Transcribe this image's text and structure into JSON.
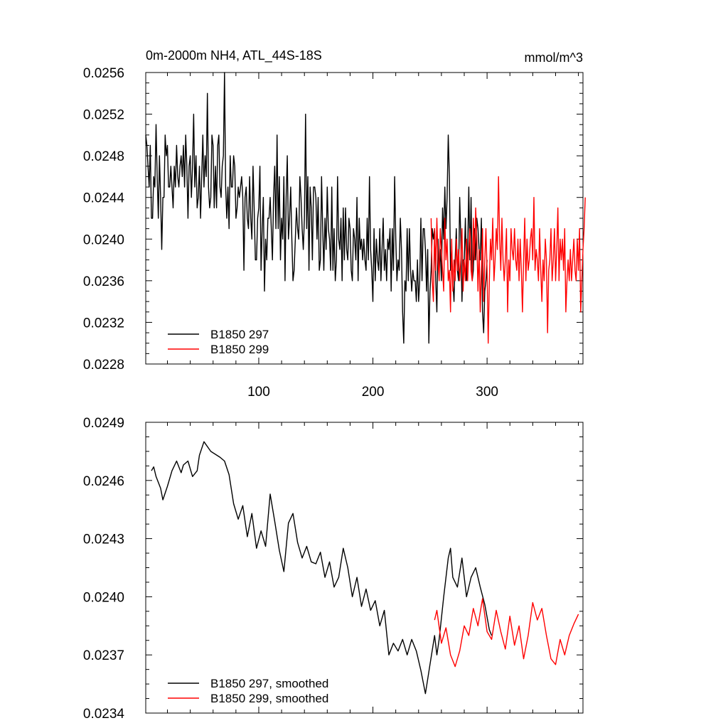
{
  "title_left": "0m-2000m NH4, ATL_44S-18S",
  "title_right": "mmol/m^3",
  "colors": {
    "series1": "#000000",
    "series2": "#ff0000"
  },
  "chart_data": [
    {
      "type": "line",
      "xlim": [
        1,
        384
      ],
      "ylim": [
        0.0228,
        0.0256
      ],
      "xticks": [
        100,
        200,
        300
      ],
      "xtick_labels": [
        "100",
        "200",
        "300"
      ],
      "yticks": [
        0.0228,
        0.0232,
        0.0236,
        0.024,
        0.0244,
        0.0248,
        0.0252,
        0.0256
      ],
      "ytick_labels": [
        "0.0228",
        "0.0232",
        "0.0236",
        "0.0240",
        "0.0244",
        "0.0248",
        "0.0252",
        "0.0256"
      ],
      "legend_position": "bottom-left",
      "series": [
        {
          "name": "B1850 297",
          "color": "#000000",
          "x_start": 1,
          "values": [
            0.025,
            0.0249,
            0.0247,
            0.0245,
            0.0249,
            0.0242,
            0.0242,
            0.0246,
            0.0245,
            0.0251,
            0.0246,
            0.0242,
            0.0248,
            0.0244,
            0.0239,
            0.0244,
            0.0244,
            0.025,
            0.0248,
            0.0249,
            0.0245,
            0.0245,
            0.0247,
            0.0245,
            0.0243,
            0.0247,
            0.0245,
            0.0249,
            0.0246,
            0.0245,
            0.0247,
            0.0248,
            0.0246,
            0.0249,
            0.0245,
            0.025,
            0.0247,
            0.0242,
            0.0247,
            0.0248,
            0.0244,
            0.0247,
            0.0252,
            0.0245,
            0.0248,
            0.0243,
            0.0244,
            0.0247,
            0.0242,
            0.0246,
            0.025,
            0.0245,
            0.0248,
            0.0246,
            0.0254,
            0.0245,
            0.0243,
            0.0244,
            0.025,
            0.0249,
            0.0243,
            0.0247,
            0.0243,
            0.0249,
            0.025,
            0.0245,
            0.0244,
            0.0247,
            0.0248,
            0.0256,
            0.0245,
            0.0242,
            0.0245,
            0.0241,
            0.0248,
            0.0245,
            0.0245,
            0.0248,
            0.0247,
            0.0242,
            0.0243,
            0.0245,
            0.0244,
            0.0245,
            0.0246,
            0.0244,
            0.0237,
            0.0244,
            0.0245,
            0.0242,
            0.0241,
            0.0246,
            0.0242,
            0.024,
            0.0247,
            0.0243,
            0.0238,
            0.0238,
            0.0242,
            0.0243,
            0.0247,
            0.0237,
            0.0241,
            0.0244,
            0.0235,
            0.024,
            0.0238,
            0.0242,
            0.0242,
            0.0244,
            0.0241,
            0.0238,
            0.0244,
            0.0247,
            0.0241,
            0.025,
            0.0241,
            0.0246,
            0.0238,
            0.0242,
            0.024,
            0.0246,
            0.0236,
            0.0244,
            0.0248,
            0.024,
            0.0242,
            0.0245,
            0.024,
            0.0236,
            0.0237,
            0.024,
            0.0243,
            0.0241,
            0.024,
            0.0246,
            0.0244,
            0.0241,
            0.0239,
            0.0242,
            0.0252,
            0.0241,
            0.0246,
            0.0237,
            0.0245,
            0.0243,
            0.0238,
            0.0245,
            0.0245,
            0.0244,
            0.024,
            0.0244,
            0.0237,
            0.0238,
            0.0246,
            0.0241,
            0.0237,
            0.0242,
            0.0239,
            0.0245,
            0.0241,
            0.024,
            0.0237,
            0.0245,
            0.0237,
            0.0241,
            0.0236,
            0.0238,
            0.0246,
            0.024,
            0.0239,
            0.0242,
            0.0236,
            0.0243,
            0.0238,
            0.0243,
            0.0239,
            0.0238,
            0.0242,
            0.0241,
            0.0237,
            0.0236,
            0.0241,
            0.024,
            0.0238,
            0.0244,
            0.0236,
            0.0242,
            0.0239,
            0.024,
            0.0238,
            0.024,
            0.0238,
            0.0237,
            0.0242,
            0.0238,
            0.0246,
            0.0239,
            0.0237,
            0.0234,
            0.0241,
            0.0236,
            0.024,
            0.0238,
            0.0237,
            0.0241,
            0.0236,
            0.0239,
            0.0242,
            0.0237,
            0.0239,
            0.0236,
            0.024,
            0.0239,
            0.0241,
            0.0235,
            0.0241,
            0.0237,
            0.0246,
            0.024,
            0.0236,
            0.0238,
            0.0237,
            0.0242,
            0.0239,
            0.0233,
            0.023,
            0.0236,
            0.0235,
            0.0241,
            0.0236,
            0.0241,
            0.0237,
            0.0235,
            0.0237,
            0.0236,
            0.0236,
            0.0234,
            0.0238,
            0.0234,
            0.0236,
            0.0242,
            0.0236,
            0.0241,
            0.0241,
            0.0239,
            0.0235,
            0.0239,
            0.023,
            0.0235,
            0.0237,
            0.0241,
            0.024,
            0.0241,
            0.0236,
            0.0233,
            0.024,
            0.0237,
            0.0239,
            0.0236,
            0.0243,
            0.024,
            0.0245,
            0.0241,
            0.0244,
            0.025,
            0.0246,
            0.0237,
            0.0239,
            0.0236,
            0.0234,
            0.0238,
            0.0241,
            0.0237,
            0.0236,
            0.0244,
            0.024,
            0.0234,
            0.0238,
            0.0238,
            0.0242,
            0.0236,
            0.0239,
            0.0245,
            0.0238,
            0.0244,
            0.0236,
            0.0237,
            0.0241,
            0.0238,
            0.0242,
            0.0241,
            0.0239,
            0.0238,
            0.0242,
            0.0233,
            0.0231,
            0.0235,
            0.0236,
            0.0238
          ]
        },
        {
          "name": "B1850 299",
          "color": "#ff0000",
          "x_start": 251,
          "values": [
            0.0242,
            0.0236,
            0.0234,
            0.0241,
            0.0237,
            0.0242,
            0.0238,
            0.0236,
            0.0241,
            0.0239,
            0.0237,
            0.0235,
            0.0242,
            0.0238,
            0.024,
            0.0236,
            0.0237,
            0.0233,
            0.024,
            0.0235,
            0.0238,
            0.0236,
            0.024,
            0.0237,
            0.0239,
            0.0236,
            0.0238,
            0.0241,
            0.0235,
            0.0238,
            0.0236,
            0.024,
            0.0236,
            0.0239,
            0.0241,
            0.0237,
            0.0236,
            0.0242,
            0.0238,
            0.0243,
            0.024,
            0.0235,
            0.0239,
            0.0233,
            0.0237,
            0.0241,
            0.0234,
            0.0238,
            0.0241,
            0.0237,
            0.023,
            0.0236,
            0.024,
            0.0238,
            0.0242,
            0.0236,
            0.0238,
            0.0241,
            0.0239,
            0.0246,
            0.024,
            0.0237,
            0.0242,
            0.0238,
            0.0236,
            0.0238,
            0.0241,
            0.0233,
            0.0238,
            0.0236,
            0.0241,
            0.0239,
            0.0238,
            0.0241,
            0.0238,
            0.0237,
            0.024,
            0.0236,
            0.024,
            0.0237,
            0.0233,
            0.0238,
            0.0242,
            0.0236,
            0.024,
            0.0237,
            0.0238,
            0.024,
            0.0241,
            0.0238,
            0.0244,
            0.0237,
            0.0239,
            0.0238,
            0.0236,
            0.0241,
            0.0237,
            0.0234,
            0.0238,
            0.0236,
            0.024,
            0.0238,
            0.0231,
            0.0237,
            0.0238,
            0.0241,
            0.0236,
            0.0238,
            0.0241,
            0.0236,
            0.0239,
            0.0243,
            0.0236,
            0.024,
            0.0238,
            0.024,
            0.0237,
            0.0241,
            0.0233,
            0.0236,
            0.0238,
            0.0236,
            0.0239,
            0.0236,
            0.0238,
            0.024,
            0.0237,
            0.0236,
            0.024,
            0.0237,
            0.0241,
            0.0233,
            0.0236,
            0.0239,
            0.0241,
            0.0244
          ]
        }
      ]
    },
    {
      "type": "line",
      "xlim": [
        1,
        384
      ],
      "ylim": [
        0.0234,
        0.0249
      ],
      "xticks": [
        100,
        200,
        300
      ],
      "xtick_labels": [],
      "yticks": [
        0.0234,
        0.0237,
        0.024,
        0.0243,
        0.0246,
        0.0249
      ],
      "ytick_labels": [
        "0.0234",
        "0.0237",
        "0.0240",
        "0.0243",
        "0.0246",
        "0.0249"
      ],
      "legend_position": "bottom-left",
      "series": [
        {
          "name": "B1850 297, smoothed",
          "color": "#000000",
          "x_points": [
            6,
            8,
            10,
            14,
            16,
            20,
            24,
            28,
            32,
            34,
            38,
            42,
            46,
            48,
            52,
            58,
            66,
            70,
            74,
            78,
            82,
            86,
            90,
            94,
            98,
            102,
            106,
            110,
            114,
            118,
            122,
            126,
            130,
            134,
            138,
            142,
            146,
            150,
            154,
            158,
            162,
            166,
            170,
            174,
            178,
            182,
            186,
            190,
            194,
            198,
            202,
            206,
            210,
            214,
            218,
            222,
            226,
            230,
            234,
            238,
            242,
            246,
            250,
            254,
            256,
            258,
            262,
            266,
            268,
            270,
            274,
            278,
            282,
            286,
            290,
            294,
            298,
            302,
            304
          ],
          "values": [
            0.02465,
            0.02467,
            0.02462,
            0.02456,
            0.0245,
            0.02457,
            0.02465,
            0.0247,
            0.02464,
            0.02468,
            0.0247,
            0.02462,
            0.02465,
            0.02473,
            0.0248,
            0.02475,
            0.02472,
            0.0247,
            0.02463,
            0.02448,
            0.0244,
            0.02447,
            0.02431,
            0.02443,
            0.02425,
            0.02434,
            0.02426,
            0.02453,
            0.02439,
            0.02424,
            0.02413,
            0.02438,
            0.02443,
            0.02428,
            0.0242,
            0.02426,
            0.02418,
            0.02417,
            0.02423,
            0.0241,
            0.02418,
            0.02405,
            0.0241,
            0.02425,
            0.02415,
            0.024,
            0.0241,
            0.02395,
            0.02404,
            0.02393,
            0.02398,
            0.02385,
            0.02393,
            0.0237,
            0.02376,
            0.02372,
            0.02378,
            0.0237,
            0.02378,
            0.02372,
            0.02362,
            0.0235,
            0.02365,
            0.0238,
            0.0237,
            0.02378,
            0.024,
            0.0242,
            0.02425,
            0.0241,
            0.02405,
            0.0242,
            0.024,
            0.0241,
            0.02415,
            0.02405,
            0.02396,
            0.02383,
            0.0238
          ]
        },
        {
          "name": "B1850 299, smoothed",
          "color": "#ff0000",
          "x_points": [
            254,
            256,
            260,
            264,
            268,
            272,
            276,
            280,
            284,
            288,
            292,
            296,
            300,
            304,
            308,
            312,
            316,
            320,
            324,
            328,
            332,
            336,
            340,
            344,
            348,
            352,
            356,
            360,
            364,
            368,
            372,
            376,
            380
          ],
          "values": [
            0.02388,
            0.02393,
            0.02376,
            0.02384,
            0.0237,
            0.02364,
            0.02372,
            0.02385,
            0.0238,
            0.02394,
            0.02385,
            0.02399,
            0.02382,
            0.02378,
            0.02393,
            0.02382,
            0.02373,
            0.0239,
            0.02375,
            0.02385,
            0.02368,
            0.0238,
            0.02397,
            0.02388,
            0.02394,
            0.0238,
            0.02368,
            0.02365,
            0.02378,
            0.0237,
            0.0238,
            0.02386,
            0.02391
          ]
        }
      ]
    }
  ]
}
